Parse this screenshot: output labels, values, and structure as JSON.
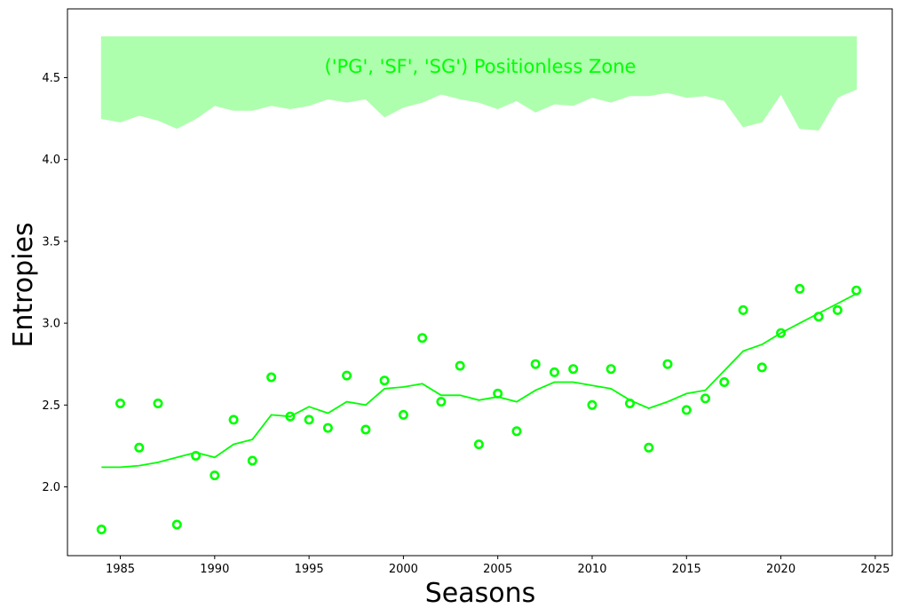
{
  "chart_data": {
    "type": "scatter",
    "title": "",
    "xlabel": "Seasons",
    "ylabel": "Entropies",
    "xlim": [
      1982.2,
      2025.9
    ],
    "ylim": [
      1.58,
      4.92
    ],
    "xticks": [
      1985,
      1990,
      1995,
      2000,
      2005,
      2010,
      2015,
      2020,
      2025
    ],
    "yticks": [
      "2.0",
      "2.5",
      "3.0",
      "3.5",
      "4.0",
      "4.5"
    ],
    "grid": false,
    "color": "#00ff00",
    "zone_label": "('PG', 'SF', 'SG') Positionless Zone",
    "zone_color": "#adffad",
    "zone": {
      "x": [
        1984,
        1985,
        1986,
        1987,
        1988,
        1989,
        1990,
        1991,
        1992,
        1993,
        1994,
        1995,
        1996,
        1997,
        1998,
        1999,
        2000,
        2001,
        2002,
        2003,
        2004,
        2005,
        2006,
        2007,
        2008,
        2009,
        2010,
        2011,
        2012,
        2013,
        2014,
        2015,
        2016,
        2017,
        2018,
        2019,
        2020,
        2021,
        2022,
        2023,
        2024
      ],
      "upper": 4.75,
      "lower": [
        4.25,
        4.23,
        4.27,
        4.24,
        4.19,
        4.25,
        4.33,
        4.3,
        4.3,
        4.33,
        4.31,
        4.33,
        4.37,
        4.35,
        4.37,
        4.26,
        4.32,
        4.35,
        4.4,
        4.37,
        4.35,
        4.31,
        4.36,
        4.29,
        4.34,
        4.33,
        4.38,
        4.35,
        4.39,
        4.39,
        4.41,
        4.38,
        4.39,
        4.36,
        4.2,
        4.23,
        4.4,
        4.19,
        4.18,
        4.38,
        4.43
      ]
    },
    "series": [
      {
        "type": "scatter",
        "x": [
          1984,
          1985,
          1986,
          1987,
          1988,
          1989,
          1990,
          1991,
          1992,
          1993,
          1994,
          1995,
          1996,
          1997,
          1998,
          1999,
          2000,
          2001,
          2002,
          2003,
          2004,
          2005,
          2006,
          2007,
          2008,
          2009,
          2010,
          2011,
          2012,
          2013,
          2014,
          2015,
          2016,
          2017,
          2018,
          2019,
          2020,
          2021,
          2022,
          2023,
          2024
        ],
        "y": [
          1.74,
          2.51,
          2.24,
          2.51,
          1.77,
          2.19,
          2.07,
          2.41,
          2.16,
          2.67,
          2.43,
          2.41,
          2.36,
          2.68,
          2.35,
          2.65,
          2.44,
          2.91,
          2.52,
          2.74,
          2.26,
          2.57,
          2.34,
          2.75,
          2.7,
          2.72,
          2.5,
          2.72,
          2.51,
          2.24,
          2.75,
          2.47,
          2.54,
          2.64,
          3.08,
          2.73,
          2.94,
          3.21,
          3.04,
          3.08,
          3.2
        ]
      },
      {
        "type": "line",
        "x": [
          1984,
          1985,
          1986,
          1987,
          1988,
          1989,
          1990,
          1991,
          1992,
          1993,
          1994,
          1995,
          1996,
          1997,
          1998,
          1999,
          2000,
          2001,
          2002,
          2003,
          2004,
          2005,
          2006,
          2007,
          2008,
          2009,
          2010,
          2011,
          2012,
          2013,
          2014,
          2015,
          2016,
          2017,
          2018,
          2019,
          2020,
          2021,
          2022,
          2023,
          2024
        ],
        "y": [
          2.12,
          2.12,
          2.13,
          2.15,
          2.18,
          2.21,
          2.18,
          2.26,
          2.29,
          2.44,
          2.43,
          2.49,
          2.45,
          2.52,
          2.5,
          2.6,
          2.61,
          2.63,
          2.56,
          2.56,
          2.53,
          2.55,
          2.52,
          2.59,
          2.64,
          2.64,
          2.62,
          2.6,
          2.53,
          2.48,
          2.52,
          2.57,
          2.59,
          2.71,
          2.83,
          2.87,
          2.94,
          3.0,
          3.06,
          3.12,
          3.18
        ]
      }
    ]
  }
}
